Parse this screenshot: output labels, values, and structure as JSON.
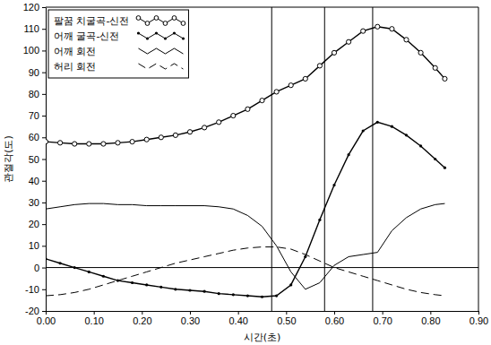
{
  "chart_data": {
    "type": "line",
    "x_label": "시간(초)",
    "y_label": "관절각(도)",
    "x": [
      0.0,
      0.03,
      0.06,
      0.09,
      0.12,
      0.15,
      0.18,
      0.21,
      0.24,
      0.27,
      0.3,
      0.33,
      0.36,
      0.39,
      0.42,
      0.45,
      0.48,
      0.51,
      0.54,
      0.57,
      0.6,
      0.63,
      0.66,
      0.69,
      0.72,
      0.75,
      0.78,
      0.81,
      0.83
    ],
    "series": [
      {
        "name": "팔꿈 치굴곡-신전",
        "color": "#000000",
        "marker": "circle",
        "line_style": "solid",
        "values": [
          58,
          57.5,
          57,
          57,
          57,
          57.5,
          58,
          59,
          60,
          61,
          62.5,
          64.5,
          67,
          70,
          73,
          77,
          81,
          84,
          87,
          93,
          99,
          104,
          109,
          111,
          110,
          105,
          99,
          92,
          87
        ]
      },
      {
        "name": "어깨 굴곡-신전",
        "color": "#000000",
        "marker": "dot",
        "line_style": "solid",
        "values": [
          4,
          2,
          0,
          -2,
          -4,
          -6,
          -7,
          -8,
          -9,
          -10,
          -10.5,
          -11,
          -12,
          -12.5,
          -13,
          -13.5,
          -13,
          -8,
          5,
          22,
          38,
          52,
          63,
          67,
          65,
          61,
          56,
          50,
          46
        ]
      },
      {
        "name": "어깨 회전",
        "color": "#000000",
        "marker": "none",
        "line_style": "solid",
        "values": [
          27,
          28,
          29,
          29.5,
          29.5,
          29,
          29,
          28.5,
          28.5,
          28.5,
          28.5,
          28.5,
          28,
          27,
          24,
          19,
          10,
          -2,
          -10,
          -7,
          1,
          5,
          6,
          7,
          17,
          23,
          27,
          29,
          29.5
        ]
      },
      {
        "name": "허리 회전",
        "color": "#000000",
        "marker": "none",
        "line_style": "dashed",
        "values": [
          -13,
          -12.5,
          -11.5,
          -10,
          -8,
          -6,
          -4,
          -2,
          0,
          2,
          3.5,
          5,
          6.5,
          8,
          9,
          9.5,
          9.5,
          8.5,
          6,
          3,
          0,
          -2,
          -4,
          -6,
          -8,
          -10,
          -11.5,
          -12.5,
          -13
        ]
      }
    ],
    "xlim": [
      0,
      0.9
    ],
    "ylim": [
      -20,
      120
    ],
    "xticks": [
      {
        "value": 0,
        "label": "0.00"
      },
      {
        "value": 0.1,
        "label": "0.10"
      },
      {
        "value": 0.2,
        "label": "0.20"
      },
      {
        "value": 0.3,
        "label": "0.30"
      },
      {
        "value": 0.4,
        "label": "0.40"
      },
      {
        "value": 0.5,
        "label": "0.50"
      },
      {
        "value": 0.6,
        "label": "0.60"
      },
      {
        "value": 0.7,
        "label": "0.70"
      },
      {
        "value": 0.8,
        "label": "0.80"
      },
      {
        "value": 0.9,
        "label": "0.90"
      }
    ],
    "yticks": [
      -20,
      -10,
      0,
      10,
      20,
      30,
      40,
      50,
      60,
      70,
      80,
      90,
      100,
      110,
      120
    ],
    "vlines": [
      0.47,
      0.58,
      0.68
    ],
    "hlines": [
      0
    ],
    "grid": false,
    "legend": "top-left"
  }
}
